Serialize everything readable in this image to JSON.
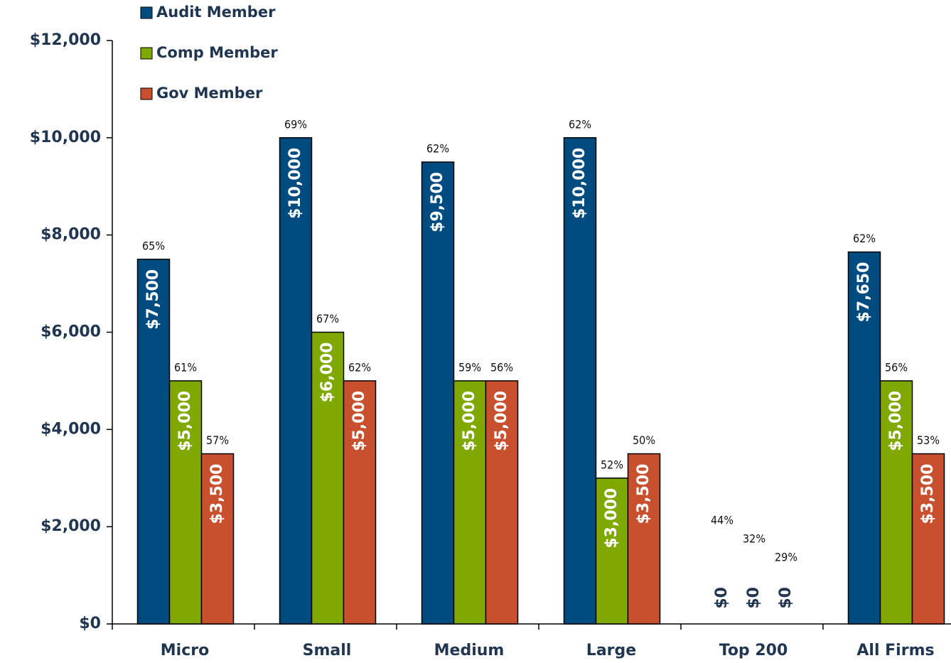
{
  "chart_data": {
    "type": "bar",
    "categories": [
      "Micro",
      "Small",
      "Medium",
      "Large",
      "Top 200",
      "All Firms"
    ],
    "series": [
      {
        "name": "Audit Member",
        "color": "#004b80",
        "values": [
          7500,
          10000,
          9500,
          10000,
          0,
          7650
        ],
        "value_labels": [
          "$7,500",
          "$10,000",
          "$9,500",
          "$10,000",
          "$0",
          "$7,650"
        ],
        "share_labels": [
          "65%",
          "69%",
          "62%",
          "62%",
          "44%",
          "62%"
        ]
      },
      {
        "name": "Comp Member",
        "color": "#7fa800",
        "values": [
          5000,
          6000,
          5000,
          3000,
          0,
          5000
        ],
        "value_labels": [
          "$5,000",
          "$6,000",
          "$5,000",
          "$3,000",
          "$0",
          "$5,000"
        ],
        "share_labels": [
          "61%",
          "67%",
          "59%",
          "52%",
          "32%",
          "56%"
        ]
      },
      {
        "name": "Gov Member",
        "color": "#c8502f",
        "values": [
          3500,
          5000,
          5000,
          3500,
          0,
          3500
        ],
        "value_labels": [
          "$3,500",
          "$5,000",
          "$5,000",
          "$3,500",
          "$0",
          "$3,500"
        ],
        "share_labels": [
          "57%",
          "62%",
          "56%",
          "50%",
          "29%",
          "53%"
        ]
      }
    ],
    "ylim": [
      0,
      12000
    ],
    "yticks": [
      {
        "value": 0,
        "label": "$0"
      },
      {
        "value": 2000,
        "label": "$2,000"
      },
      {
        "value": 4000,
        "label": "$4,000"
      },
      {
        "value": 6000,
        "label": "$6,000"
      },
      {
        "value": 8000,
        "label": "$8,000"
      },
      {
        "value": 10000,
        "label": "$10,000"
      },
      {
        "value": 12000,
        "label": "$12,000"
      }
    ],
    "legend": "top-left"
  }
}
